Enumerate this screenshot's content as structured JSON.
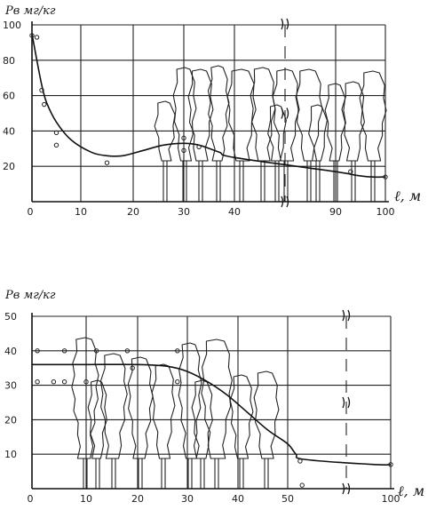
{
  "chart_data": [
    {
      "id": "top",
      "type": "line",
      "ylabel": "Pв мг/кг",
      "xlabel": "ℓ, м",
      "x_ticks": [
        "0",
        "10",
        "20",
        "30",
        "40",
        "90",
        "100"
      ],
      "y_ticks": [
        "20",
        "40",
        "60",
        "80",
        "100"
      ],
      "x_ticks_numeric": [
        0,
        10,
        20,
        30,
        40,
        90,
        100
      ],
      "y_ticks_numeric": [
        20,
        40,
        60,
        80,
        100
      ],
      "ylim": [
        0,
        100
      ],
      "axis_break": {
        "after": 40,
        "before": 90
      },
      "grid": true,
      "series": [
        {
          "x": [
            0,
            1,
            2,
            3,
            5,
            8,
            12,
            15,
            18,
            22,
            26,
            30,
            33,
            37,
            40,
            90,
            94,
            97,
            100
          ],
          "y": [
            95,
            80,
            66,
            56,
            45,
            35,
            28,
            26,
            26,
            29,
            32,
            33,
            32,
            28,
            25,
            17,
            15,
            14,
            14
          ]
        }
      ],
      "points": [
        {
          "x": 0,
          "y": 94
        },
        {
          "x": 1,
          "y": 93
        },
        {
          "x": 2,
          "y": 63
        },
        {
          "x": 2.5,
          "y": 55
        },
        {
          "x": 5,
          "y": 39
        },
        {
          "x": 5,
          "y": 32
        },
        {
          "x": 15,
          "y": 22
        },
        {
          "x": 30,
          "y": 36
        },
        {
          "x": 30,
          "y": 29
        },
        {
          "x": 33,
          "y": 31
        },
        {
          "x": 93,
          "y": 17
        },
        {
          "x": 100,
          "y": 14
        }
      ]
    },
    {
      "id": "bottom",
      "type": "line",
      "ylabel": "Pв мг/кг",
      "xlabel": "ℓ, м",
      "x_ticks": [
        "0",
        "10",
        "20",
        "30",
        "40",
        "50",
        "100"
      ],
      "y_ticks": [
        "10",
        "20",
        "30",
        "40",
        "50"
      ],
      "x_ticks_numeric": [
        0,
        10,
        20,
        30,
        40,
        50,
        100
      ],
      "y_ticks_numeric": [
        10,
        20,
        30,
        40,
        50
      ],
      "ylim": [
        0,
        50
      ],
      "axis_break": {
        "after": 58,
        "before": 90
      },
      "grid": true,
      "series": [
        {
          "x": [
            0,
            10,
            20,
            26,
            30,
            34,
            38,
            42,
            46,
            50,
            54,
            58,
            92,
            100
          ],
          "y": [
            36,
            36,
            36,
            35.5,
            34,
            31,
            27,
            22,
            17,
            13,
            10,
            8.5,
            7,
            7
          ]
        }
      ],
      "points": [
        {
          "x": 1,
          "y": 40
        },
        {
          "x": 6,
          "y": 40
        },
        {
          "x": 12,
          "y": 40
        },
        {
          "x": 18,
          "y": 40
        },
        {
          "x": 28,
          "y": 40
        },
        {
          "x": 1,
          "y": 31
        },
        {
          "x": 4,
          "y": 31
        },
        {
          "x": 6,
          "y": 31
        },
        {
          "x": 10,
          "y": 31
        },
        {
          "x": 19,
          "y": 35
        },
        {
          "x": 28,
          "y": 31
        },
        {
          "x": 56,
          "y": 8
        },
        {
          "x": 57,
          "y": 1
        },
        {
          "x": 100,
          "y": 7
        }
      ]
    }
  ]
}
